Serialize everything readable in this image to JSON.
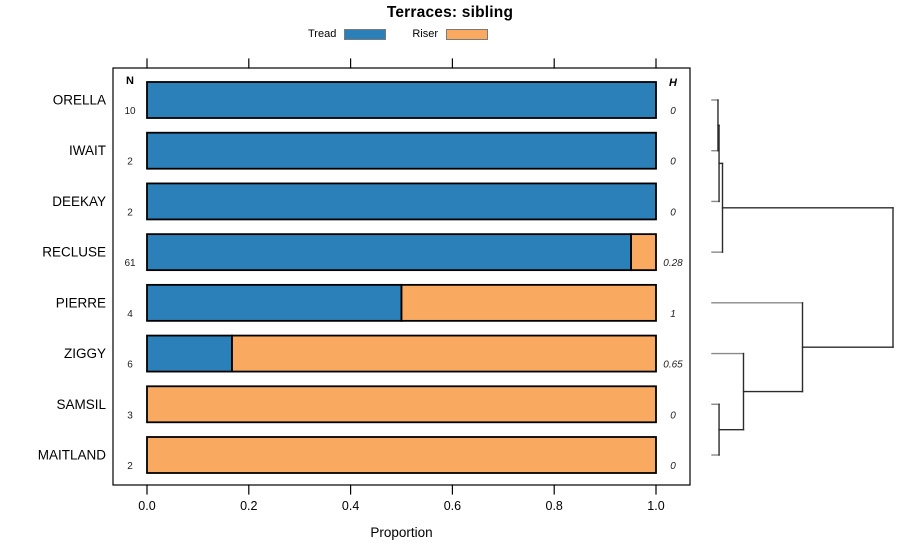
{
  "title": "Terraces: sibling",
  "legend": {
    "items": [
      {
        "label": "Tread",
        "color": "#2C80B9"
      },
      {
        "label": "Riser",
        "color": "#FAAA60"
      }
    ]
  },
  "columns": {
    "n_header": "N",
    "h_header": "H"
  },
  "axis": {
    "xlabel": "Proportion",
    "tick_labels": [
      "0.0",
      "0.2",
      "0.4",
      "0.6",
      "0.8",
      "1.0"
    ],
    "tick_values": [
      0,
      0.2,
      0.4,
      0.6,
      0.8,
      1.0
    ]
  },
  "chart_data": {
    "type": "bar",
    "orientation": "horizontal",
    "stacked": true,
    "title": "Terraces: sibling",
    "xlabel": "Proportion",
    "xlim": [
      0,
      1
    ],
    "grid": false,
    "legend_position": "top",
    "categories": [
      "ORELLA",
      "IWAIT",
      "DEEKAY",
      "RECLUSE",
      "PIERRE",
      "ZIGGY",
      "SAMSIL",
      "MAITLAND"
    ],
    "n_values": [
      10,
      2,
      2,
      61,
      4,
      6,
      3,
      2
    ],
    "h_values": [
      "0",
      "0",
      "0",
      "0.28",
      "1",
      "0.65",
      "0",
      "0"
    ],
    "series": [
      {
        "name": "Tread",
        "color": "#2C80B9",
        "values": [
          1,
          1,
          1,
          0.951,
          0.5,
          0.167,
          0,
          0
        ]
      },
      {
        "name": "Riser",
        "color": "#FAAA60",
        "values": [
          0,
          0,
          0,
          0.049,
          0.5,
          0.833,
          1,
          1
        ]
      }
    ],
    "dendrogram": {
      "note": "right-side cluster tree, heights relative 0-1 of dendrogram axis",
      "tree": {
        "h": 1.0,
        "children": [
          {
            "h": 0.058,
            "children": [
              {
                "h": 0.039,
                "children": [
                  {
                    "h": 0.033,
                    "children": [
                      "ORELLA",
                      "IWAIT"
                    ]
                  },
                  "DEEKAY"
                ]
              },
              "RECLUSE"
            ]
          },
          {
            "h": 0.5,
            "children": [
              "PIERRE",
              {
                "h": 0.174,
                "children": [
                  "ZIGGY",
                  {
                    "h": 0.039,
                    "children": [
                      "SAMSIL",
                      "MAITLAND"
                    ]
                  }
                ]
              }
            ]
          }
        ]
      }
    },
    "colors": {
      "tread": "#2C80B9",
      "riser": "#FAAA60",
      "bar_border": "#000000",
      "dendro_leaf": "#8a8a8a",
      "dendro_link": "#2b2b2b"
    }
  }
}
